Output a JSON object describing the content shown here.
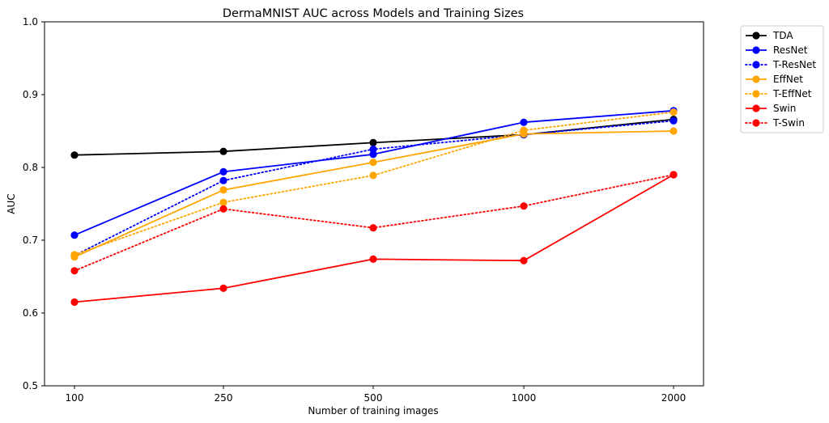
{
  "chart_data": {
    "type": "line",
    "title": "DermaMNIST AUC across Models and Training Sizes",
    "xlabel": "Number of training images",
    "ylabel": "AUC",
    "categories": [
      "100",
      "250",
      "500",
      "1000",
      "2000"
    ],
    "ylim": [
      0.5,
      1.0
    ],
    "yticks": [
      "0.5",
      "0.6",
      "0.7",
      "0.8",
      "0.9",
      "1.0"
    ],
    "grid": false,
    "legend_position": "outside-top-right",
    "series": [
      {
        "name": "TDA",
        "color": "#000000",
        "style": "solid",
        "values": [
          0.817,
          0.822,
          0.834,
          0.845,
          0.866
        ]
      },
      {
        "name": "ResNet",
        "color": "#0000ff",
        "style": "solid",
        "values": [
          0.707,
          0.794,
          0.818,
          0.862,
          0.878
        ]
      },
      {
        "name": "T-ResNet",
        "color": "#0000ff",
        "style": "dotted",
        "values": [
          0.679,
          0.782,
          0.825,
          0.845,
          0.864
        ]
      },
      {
        "name": "EffNet",
        "color": "#ffa500",
        "style": "solid",
        "values": [
          0.677,
          0.769,
          0.807,
          0.846,
          0.85
        ]
      },
      {
        "name": "T-EffNet",
        "color": "#ffa500",
        "style": "dotted",
        "values": [
          0.68,
          0.752,
          0.789,
          0.851,
          0.876
        ]
      },
      {
        "name": "Swin",
        "color": "#ff0000",
        "style": "solid",
        "values": [
          0.615,
          0.634,
          0.674,
          0.672,
          0.79
        ]
      },
      {
        "name": "T-Swin",
        "color": "#ff0000",
        "style": "dotted",
        "values": [
          0.658,
          0.743,
          0.717,
          0.747,
          0.79
        ]
      }
    ]
  }
}
